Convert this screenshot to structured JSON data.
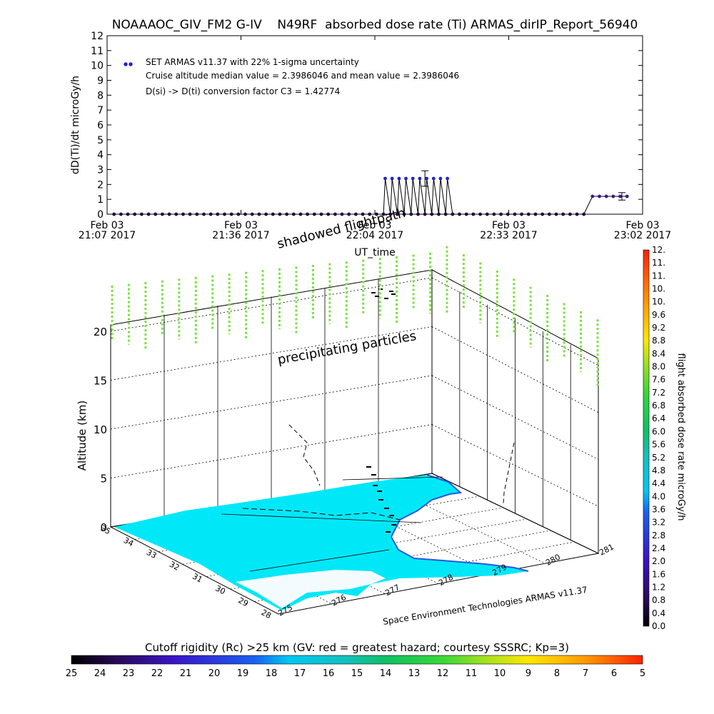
{
  "chart_data": [
    {
      "type": "line",
      "title": "NOAAAOC_GIV_FM2 G-IV    N49RF  absorbed dose rate (Ti) ARMAS_dirIP_Report_56940",
      "ylabel": "dD(Ti)/dt microGy/h",
      "xlabel": "UT_time",
      "ylim": [
        0,
        12
      ],
      "yticks": [
        "0",
        "1",
        "2",
        "3",
        "4",
        "5",
        "6",
        "7",
        "8",
        "9",
        "10",
        "11",
        "12"
      ],
      "xticks": [
        {
          "date": "Feb 03",
          "time": "21:07 2017"
        },
        {
          "date": "Feb 03",
          "time": "21:36 2017"
        },
        {
          "date": "Feb 03",
          "time": "22:04 2017"
        },
        {
          "date": "Feb 03",
          "time": "22:33 2017"
        },
        {
          "date": "Feb 03",
          "time": "23:02 2017"
        }
      ],
      "x_range_minutes": [
        0,
        115
      ],
      "legend": {
        "entry": "SET ARMAS v11.37 with 22% 1-sigma uncertainty",
        "line2": "Cruise altitude median value = 2.3986046 and mean value = 2.3986046",
        "line3": "D(si) -> D(ti) conversion factor C3 = 1.42774",
        "marker_color": "#1e22c8"
      },
      "series": [
        {
          "values_segment": "zero",
          "x": [
            2,
            4,
            6,
            8,
            10,
            12,
            14,
            16,
            18,
            20,
            22,
            24,
            26,
            28,
            30,
            32,
            34,
            36,
            38,
            40,
            42,
            44,
            46,
            48,
            50,
            52,
            54,
            56,
            58,
            60,
            62,
            64,
            66,
            68,
            70,
            72,
            74,
            76,
            78,
            80,
            82,
            84,
            86,
            88,
            90,
            92,
            94,
            96,
            98
          ],
          "y": 0,
          "color": "#23063a"
        },
        {
          "values_segment": "plateau",
          "x": [
            80.5,
            82.5,
            84.5,
            86.5,
            88.5,
            90.5,
            92.5,
            94.5,
            96.5,
            98.5
          ],
          "y": 2.4,
          "color": "#2323c8"
        },
        {
          "values_segment": "zero_2",
          "x": [
            100,
            102,
            104,
            106,
            108,
            110,
            112,
            114,
            116,
            118,
            120,
            122,
            124,
            126,
            128,
            130,
            132,
            134,
            136,
            138
          ],
          "y": 0,
          "color": "#23063a"
        },
        {
          "values_segment": "end",
          "x": [
            140.5,
            142.5,
            144.5,
            146.5,
            148.5,
            150.5
          ],
          "y": 1.2,
          "color": "#3a1890"
        }
      ],
      "error_bars": [
        {
          "x": 92,
          "y": 2.4,
          "low": 1.88,
          "high": 2.92
        },
        {
          "x": 149,
          "y": 1.2,
          "low": 0.95,
          "high": 1.45
        }
      ]
    },
    {
      "type": "surface-3d",
      "zlabel": "Altitude (km)",
      "zticks": [
        "0",
        "5",
        "10",
        "15",
        "20"
      ],
      "lat_ticks": [
        "35",
        "34",
        "33",
        "32",
        "31",
        "30",
        "29",
        "28"
      ],
      "lon_ticks": [
        "275",
        "276",
        "277",
        "278",
        "279",
        "280",
        "281"
      ],
      "annotations": {
        "shadowed": "shadowed flightpath",
        "precip": "precipitating particles",
        "credit": "Space Environment Technologies ARMAS v11.37"
      },
      "region_color": "#00e8f8",
      "precip_color": "#7be040"
    },
    {
      "type": "colorbar",
      "label": "flight absorbed dose rate microGy/h",
      "ticks": [
        "0.0",
        "0.4",
        "0.8",
        "1.2",
        "1.6",
        "2.0",
        "2.4",
        "2.8",
        "3.2",
        "3.6",
        "4.0",
        "4.4",
        "4.8",
        "5.2",
        "5.6",
        "6.0",
        "6.4",
        "6.8",
        "7.2",
        "7.6",
        "8.0",
        "8.4",
        "8.8",
        "9.2",
        "9.6",
        "10.",
        "10.",
        "11.",
        "11.",
        "12."
      ],
      "range": [
        0,
        12
      ]
    },
    {
      "type": "colorbar",
      "title": "Cutoff rigidity (Rc) >25 km (GV: red = greatest hazard; courtesy SSSRC; Kp=3)",
      "ticks": [
        "25",
        "24",
        "23",
        "22",
        "21",
        "20",
        "19",
        "18",
        "17",
        "16",
        "15",
        "14",
        "13",
        "12",
        "11",
        "10",
        "9",
        "8",
        "7",
        "6",
        "5"
      ],
      "range": [
        25,
        5
      ]
    }
  ]
}
